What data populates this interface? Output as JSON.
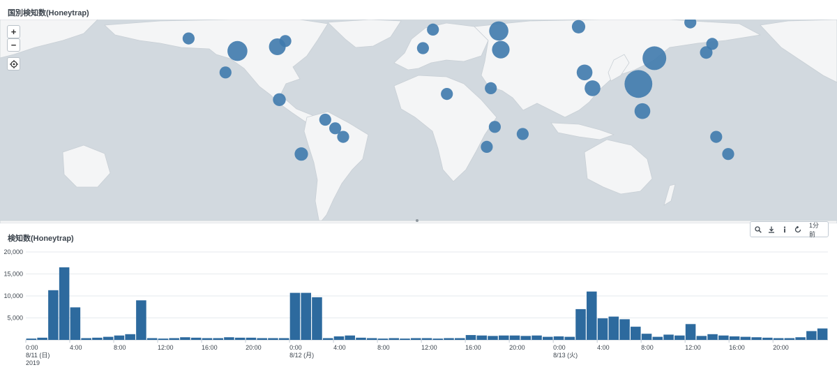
{
  "map_panel": {
    "title": "国別検知数(Honeytrap)",
    "zoom_in_label": "+",
    "zoom_out_label": "−",
    "locate_icon": "crosshair-icon",
    "marker_color": "#3f7aad",
    "markers": [
      {
        "lon": -120.5,
        "lat": 46.8,
        "size": 1
      },
      {
        "lon": -96,
        "lat": 38,
        "size": 5
      },
      {
        "lon": -76,
        "lat": 41,
        "size": 3
      },
      {
        "lon": -72,
        "lat": 45,
        "size": 1
      },
      {
        "lon": -102,
        "lat": 23,
        "size": 1
      },
      {
        "lon": -75,
        "lat": 4,
        "size": 1.3
      },
      {
        "lon": -52,
        "lat": -10,
        "size": 1
      },
      {
        "lon": -64,
        "lat": -34,
        "size": 1.5
      },
      {
        "lon": -47,
        "lat": -16,
        "size": 1
      },
      {
        "lon": -43,
        "lat": -22,
        "size": 1
      },
      {
        "lon": -3,
        "lat": 40,
        "size": 1
      },
      {
        "lon": 2,
        "lat": 53,
        "size": 1
      },
      {
        "lon": 9,
        "lat": 8,
        "size": 1
      },
      {
        "lon": 35,
        "lat": 52,
        "size": 4.5
      },
      {
        "lon": 36,
        "lat": 39,
        "size": 3.5
      },
      {
        "lon": 31,
        "lat": 12,
        "size": 1
      },
      {
        "lon": 33,
        "lat": -15,
        "size": 1
      },
      {
        "lon": 29,
        "lat": -29,
        "size": 1
      },
      {
        "lon": 47,
        "lat": -20,
        "size": 1
      },
      {
        "lon": 78,
        "lat": 23,
        "size": 2.5
      },
      {
        "lon": 82,
        "lat": 12,
        "size": 2.5
      },
      {
        "lon": 75,
        "lat": 55,
        "size": 1.5
      },
      {
        "lon": 105,
        "lat": 15,
        "size": 12
      },
      {
        "lon": 113,
        "lat": 33,
        "size": 8
      },
      {
        "lon": 107,
        "lat": -4,
        "size": 2.5
      },
      {
        "lon": 139,
        "lat": 37,
        "size": 1.2
      },
      {
        "lon": 142,
        "lat": 43,
        "size": 1
      },
      {
        "lon": 131,
        "lat": 58,
        "size": 1
      },
      {
        "lon": 150,
        "lat": -34,
        "size": 1
      },
      {
        "lon": 144,
        "lat": -22,
        "size": 1
      }
    ]
  },
  "chart_panel": {
    "title": "検知数(Honeytrap)",
    "toolbar": {
      "search_icon": "magnifier-icon",
      "export_icon": "download-icon",
      "info_icon": "info-icon",
      "refresh_icon": "refresh-icon",
      "last_updated": "1分前"
    }
  },
  "chart_data": {
    "type": "bar",
    "title": "検知数(Honeytrap)",
    "xlabel": "",
    "ylabel": "",
    "ylim": [
      0,
      20000
    ],
    "yticks": [
      "20,000",
      "15,000",
      "10,000",
      "5,000"
    ],
    "ytick_values": [
      20000,
      15000,
      10000,
      5000
    ],
    "x_labels": [
      {
        "hour": 0,
        "line1": "0:00",
        "line2": "8/11 (日)",
        "line3": "2019"
      },
      {
        "hour": 4,
        "line1": "4:00",
        "line2": "",
        "line3": ""
      },
      {
        "hour": 8,
        "line1": "8:00",
        "line2": "",
        "line3": ""
      },
      {
        "hour": 12,
        "line1": "12:00",
        "line2": "",
        "line3": ""
      },
      {
        "hour": 16,
        "line1": "16:00",
        "line2": "",
        "line3": ""
      },
      {
        "hour": 20,
        "line1": "20:00",
        "line2": "",
        "line3": ""
      },
      {
        "hour": 24,
        "line1": "0:00",
        "line2": "8/12 (月)",
        "line3": ""
      },
      {
        "hour": 28,
        "line1": "4:00",
        "line2": "",
        "line3": ""
      },
      {
        "hour": 32,
        "line1": "8:00",
        "line2": "",
        "line3": ""
      },
      {
        "hour": 36,
        "line1": "12:00",
        "line2": "",
        "line3": ""
      },
      {
        "hour": 40,
        "line1": "16:00",
        "line2": "",
        "line3": ""
      },
      {
        "hour": 44,
        "line1": "20:00",
        "line2": "",
        "line3": ""
      },
      {
        "hour": 48,
        "line1": "0:00",
        "line2": "8/13 (火)",
        "line3": ""
      },
      {
        "hour": 52,
        "line1": "4:00",
        "line2": "",
        "line3": ""
      },
      {
        "hour": 56,
        "line1": "8:00",
        "line2": "",
        "line3": ""
      },
      {
        "hour": 60,
        "line1": "12:00",
        "line2": "",
        "line3": ""
      },
      {
        "hour": 64,
        "line1": "16:00",
        "line2": "",
        "line3": ""
      },
      {
        "hour": 68,
        "line1": "20:00",
        "line2": "",
        "line3": ""
      }
    ],
    "bar_color": "#2d6a9e",
    "values": [
      300,
      500,
      11300,
      16500,
      7400,
      400,
      500,
      700,
      1000,
      1300,
      9000,
      400,
      300,
      400,
      600,
      500,
      400,
      400,
      600,
      500,
      500,
      400,
      400,
      400,
      10700,
      10700,
      9700,
      400,
      800,
      1000,
      500,
      400,
      300,
      400,
      300,
      400,
      400,
      300,
      400,
      400,
      1100,
      1000,
      900,
      1000,
      1000,
      900,
      1000,
      700,
      800,
      700,
      7000,
      11000,
      4900,
      5300,
      4700,
      3000,
      1400,
      700,
      1200,
      1000,
      3600,
      900,
      1300,
      1000,
      800,
      700,
      600,
      500,
      400,
      400,
      600,
      2000,
      2600
    ]
  }
}
